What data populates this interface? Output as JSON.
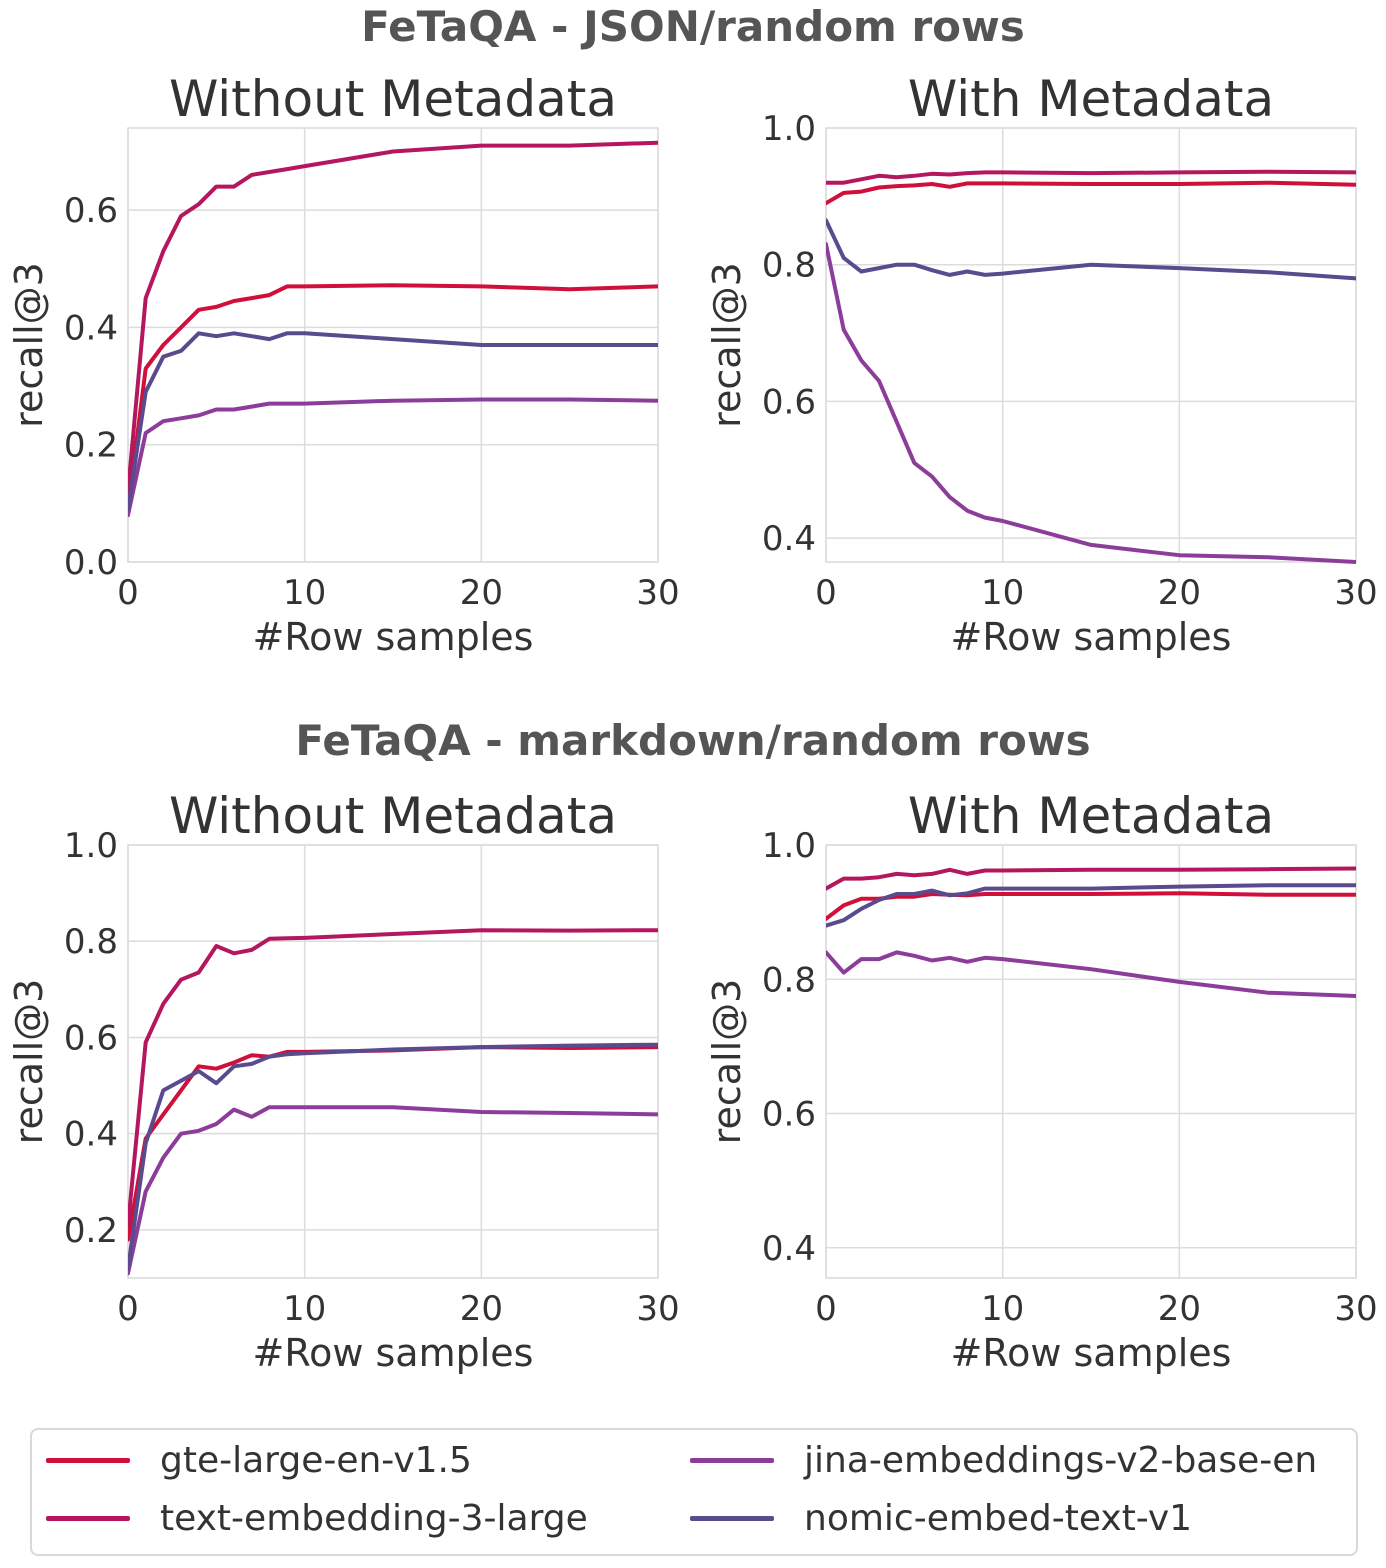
{
  "figure": {
    "section_titles": [
      "FeTaQA - JSON/random rows",
      "FeTaQA - markdown/random rows"
    ]
  },
  "legend": {
    "items": [
      {
        "name": "gte-large-en-v1.5",
        "color": "#d0103a"
      },
      {
        "name": "text-embedding-3-large",
        "color": "#b5175e"
      },
      {
        "name": "jina-embeddings-v2-base-en",
        "color": "#8c3d9a"
      },
      {
        "name": "nomic-embed-text-v1",
        "color": "#5a4a8e"
      }
    ]
  },
  "chart_data": [
    {
      "type": "line",
      "title": "Without Metadata",
      "xlabel": "#Row samples",
      "ylabel": "recall@3",
      "xlim": [
        0,
        30
      ],
      "ylim": [
        0.0,
        0.74
      ],
      "xticks": [
        0,
        10,
        20,
        30
      ],
      "yticks": [
        0.0,
        0.2,
        0.4,
        0.6
      ],
      "ytick_labels": [
        "0.0",
        "0.2",
        "0.4",
        "0.6"
      ],
      "grid": true,
      "x": [
        0,
        1,
        2,
        3,
        4,
        5,
        6,
        7,
        8,
        9,
        10,
        15,
        20,
        25,
        30
      ],
      "series": [
        {
          "name": "gte-large-en-v1.5",
          "values": [
            0.09,
            0.33,
            0.37,
            0.4,
            0.43,
            0.435,
            0.445,
            0.45,
            0.455,
            0.47,
            0.47,
            0.472,
            0.47,
            0.465,
            0.47
          ]
        },
        {
          "name": "text-embedding-3-large",
          "values": [
            0.12,
            0.45,
            0.53,
            0.59,
            0.61,
            0.64,
            0.64,
            0.66,
            0.665,
            0.67,
            0.675,
            0.7,
            0.71,
            0.71,
            0.715
          ]
        },
        {
          "name": "jina-embeddings-v2-base-en",
          "values": [
            0.08,
            0.22,
            0.24,
            0.245,
            0.25,
            0.26,
            0.26,
            0.265,
            0.27,
            0.27,
            0.27,
            0.275,
            0.277,
            0.277,
            0.275
          ]
        },
        {
          "name": "nomic-embed-text-v1",
          "values": [
            0.09,
            0.29,
            0.35,
            0.36,
            0.39,
            0.385,
            0.39,
            0.385,
            0.38,
            0.39,
            0.39,
            0.38,
            0.37,
            0.37,
            0.37
          ]
        }
      ]
    },
    {
      "type": "line",
      "title": "With Metadata",
      "xlabel": "#Row samples",
      "ylabel": "recall@3",
      "xlim": [
        0,
        30
      ],
      "ylim": [
        0.365,
        1.0
      ],
      "xticks": [
        0,
        10,
        20,
        30
      ],
      "yticks": [
        0.4,
        0.6,
        0.8,
        1.0
      ],
      "ytick_labels": [
        "0.4",
        "0.6",
        "0.8",
        "1.0"
      ],
      "grid": true,
      "x": [
        0,
        1,
        2,
        3,
        4,
        5,
        6,
        7,
        8,
        9,
        10,
        15,
        20,
        25,
        30
      ],
      "series": [
        {
          "name": "gte-large-en-v1.5",
          "values": [
            0.89,
            0.905,
            0.907,
            0.913,
            0.915,
            0.916,
            0.918,
            0.914,
            0.919,
            0.919,
            0.919,
            0.918,
            0.918,
            0.92,
            0.917
          ]
        },
        {
          "name": "text-embedding-3-large",
          "values": [
            0.92,
            0.92,
            0.925,
            0.93,
            0.928,
            0.93,
            0.933,
            0.932,
            0.934,
            0.935,
            0.935,
            0.934,
            0.935,
            0.936,
            0.935
          ]
        },
        {
          "name": "jina-embeddings-v2-base-en",
          "values": [
            0.83,
            0.705,
            0.66,
            0.63,
            0.57,
            0.51,
            0.49,
            0.46,
            0.44,
            0.43,
            0.425,
            0.39,
            0.375,
            0.372,
            0.365
          ]
        },
        {
          "name": "nomic-embed-text-v1",
          "values": [
            0.865,
            0.81,
            0.79,
            0.795,
            0.8,
            0.8,
            0.792,
            0.785,
            0.79,
            0.785,
            0.787,
            0.8,
            0.795,
            0.789,
            0.78
          ]
        }
      ]
    },
    {
      "type": "line",
      "title": "Without Metadata",
      "xlabel": "#Row samples",
      "ylabel": "recall@3",
      "xlim": [
        0,
        30
      ],
      "ylim": [
        0.1,
        1.0
      ],
      "xticks": [
        0,
        10,
        20,
        30
      ],
      "yticks": [
        0.2,
        0.4,
        0.6,
        0.8,
        1.0
      ],
      "ytick_labels": [
        "0.2",
        "0.4",
        "0.6",
        "0.8",
        "1.0"
      ],
      "grid": true,
      "x": [
        0,
        1,
        2,
        3,
        4,
        5,
        6,
        7,
        8,
        9,
        10,
        15,
        20,
        25,
        30
      ],
      "series": [
        {
          "name": "gte-large-en-v1.5",
          "values": [
            0.18,
            0.39,
            0.44,
            0.49,
            0.54,
            0.535,
            0.548,
            0.563,
            0.56,
            0.57,
            0.57,
            0.573,
            0.58,
            0.578,
            0.58
          ]
        },
        {
          "name": "text-embedding-3-large",
          "values": [
            0.21,
            0.59,
            0.67,
            0.72,
            0.735,
            0.79,
            0.775,
            0.782,
            0.805,
            0.806,
            0.807,
            0.815,
            0.823,
            0.822,
            0.823
          ]
        },
        {
          "name": "jina-embeddings-v2-base-en",
          "values": [
            0.11,
            0.28,
            0.35,
            0.4,
            0.406,
            0.42,
            0.45,
            0.435,
            0.455,
            0.455,
            0.455,
            0.455,
            0.445,
            0.443,
            0.44
          ]
        },
        {
          "name": "nomic-embed-text-v1",
          "values": [
            0.12,
            0.38,
            0.49,
            0.51,
            0.53,
            0.505,
            0.54,
            0.545,
            0.56,
            0.565,
            0.567,
            0.575,
            0.58,
            0.583,
            0.585
          ]
        }
      ]
    },
    {
      "type": "line",
      "title": "With Metadata",
      "xlabel": "#Row samples",
      "ylabel": "recall@3",
      "xlim": [
        0,
        30
      ],
      "ylim": [
        0.355,
        1.0
      ],
      "xticks": [
        0,
        10,
        20,
        30
      ],
      "yticks": [
        0.4,
        0.6,
        0.8,
        1.0
      ],
      "ytick_labels": [
        "0.4",
        "0.6",
        "0.8",
        "1.0"
      ],
      "grid": true,
      "x": [
        0,
        1,
        2,
        3,
        4,
        5,
        6,
        7,
        8,
        9,
        10,
        15,
        20,
        25,
        30
      ],
      "series": [
        {
          "name": "gte-large-en-v1.5",
          "values": [
            0.89,
            0.91,
            0.92,
            0.92,
            0.923,
            0.923,
            0.927,
            0.926,
            0.925,
            0.927,
            0.927,
            0.927,
            0.928,
            0.926,
            0.926
          ]
        },
        {
          "name": "text-embedding-3-large",
          "values": [
            0.935,
            0.95,
            0.95,
            0.952,
            0.957,
            0.955,
            0.957,
            0.963,
            0.957,
            0.962,
            0.962,
            0.963,
            0.963,
            0.964,
            0.965
          ]
        },
        {
          "name": "jina-embeddings-v2-base-en",
          "values": [
            0.84,
            0.81,
            0.83,
            0.83,
            0.84,
            0.835,
            0.828,
            0.832,
            0.826,
            0.832,
            0.83,
            0.815,
            0.796,
            0.78,
            0.775
          ]
        },
        {
          "name": "nomic-embed-text-v1",
          "values": [
            0.88,
            0.888,
            0.905,
            0.918,
            0.927,
            0.927,
            0.932,
            0.925,
            0.928,
            0.935,
            0.935,
            0.935,
            0.938,
            0.94,
            0.94
          ]
        }
      ]
    }
  ]
}
